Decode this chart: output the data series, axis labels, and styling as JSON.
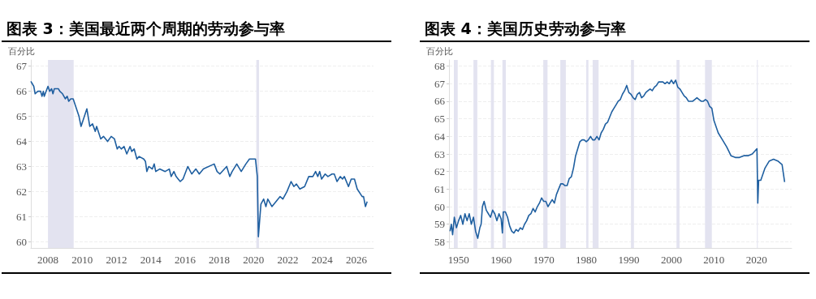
{
  "chart_data": [
    {
      "type": "line",
      "title": "图表 3：美国最近两个周期的劳动参与率",
      "ylabel": "百分比",
      "xlim": [
        2007,
        2027
      ],
      "xticks": [
        2008,
        2010,
        2012,
        2014,
        2016,
        2018,
        2020,
        2022,
        2024,
        2026
      ],
      "ylim": [
        59.75,
        67.25
      ],
      "yticks": [
        60,
        61,
        62,
        63,
        64,
        65,
        66,
        67
      ],
      "grid": "y",
      "marker": "none",
      "line_style": "solid",
      "bands": [
        {
          "axis": "x",
          "from": 2008,
          "to": 2009.5,
          "color": "#e3e3f0"
        },
        {
          "axis": "x",
          "from": 2020.16,
          "to": 2020.32,
          "color": "#e3e3f0"
        }
      ],
      "series": [
        {
          "color": "#1f5fa0",
          "x": [
            2007.0,
            2007.17,
            2007.25,
            2007.41,
            2007.57,
            2007.65,
            2007.73,
            2007.78,
            2007.89,
            2008.0,
            2008.1,
            2008.21,
            2008.29,
            2008.37,
            2008.61,
            2008.69,
            2008.85,
            2009.01,
            2009.12,
            2009.21,
            2009.33,
            2009.47,
            2009.81,
            2009.93,
            2010.27,
            2010.44,
            2010.6,
            2010.76,
            2010.84,
            2011.08,
            2011.24,
            2011.48,
            2011.69,
            2011.88,
            2012.04,
            2012.15,
            2012.28,
            2012.44,
            2012.6,
            2012.79,
            2012.89,
            2013.03,
            2013.19,
            2013.32,
            2013.59,
            2013.69,
            2013.77,
            2013.88,
            2014.09,
            2014.2,
            2014.29,
            2014.52,
            2014.84,
            2015.08,
            2015.19,
            2015.35,
            2015.48,
            2015.6,
            2015.72,
            2015.88,
            2016.16,
            2016.39,
            2016.63,
            2016.83,
            2017.07,
            2017.7,
            2017.87,
            2018.03,
            2018.43,
            2018.61,
            2018.75,
            2019.02,
            2019.28,
            2019.55,
            2019.76,
            2020.11,
            2020.22,
            2020.28,
            2020.43,
            2020.59,
            2020.72,
            2020.83,
            2021.07,
            2021.31,
            2021.55,
            2021.71,
            2021.95,
            2022.19,
            2022.35,
            2022.5,
            2022.7,
            2022.98,
            2023.22,
            2023.46,
            2023.62,
            2023.75,
            2023.86,
            2023.97,
            2024.18,
            2024.34,
            2024.58,
            2024.71,
            2024.87,
            2025.06,
            2025.19,
            2025.3,
            2025.54,
            2025.7,
            2025.89,
            2026.05,
            2026.34,
            2026.42,
            2026.53,
            2026.63
          ],
          "values": [
            66.4,
            66.2,
            65.9,
            66.0,
            66.0,
            65.8,
            66.0,
            65.8,
            66.0,
            66.2,
            66.0,
            66.1,
            65.9,
            66.1,
            66.1,
            66.0,
            65.9,
            65.7,
            65.8,
            65.6,
            65.7,
            65.7,
            65.0,
            64.6,
            65.3,
            64.6,
            64.7,
            64.4,
            64.6,
            64.1,
            64.2,
            64.0,
            64.2,
            64.1,
            63.7,
            63.8,
            63.7,
            63.8,
            63.5,
            63.8,
            63.6,
            63.7,
            63.3,
            63.4,
            63.3,
            63.2,
            62.8,
            63.0,
            62.9,
            63.1,
            62.8,
            62.9,
            62.8,
            62.9,
            62.6,
            62.8,
            62.6,
            62.5,
            62.4,
            62.5,
            63.0,
            62.7,
            62.9,
            62.7,
            62.9,
            63.1,
            62.8,
            62.7,
            63.0,
            62.6,
            62.8,
            63.1,
            62.8,
            63.1,
            63.3,
            63.3,
            62.6,
            60.2,
            61.5,
            61.7,
            61.4,
            61.7,
            61.4,
            61.6,
            61.8,
            61.7,
            62.0,
            62.4,
            62.2,
            62.3,
            62.1,
            62.2,
            62.6,
            62.6,
            62.8,
            62.6,
            62.8,
            62.5,
            62.7,
            62.6,
            62.7,
            62.7,
            62.4,
            62.6,
            62.5,
            62.6,
            62.2,
            62.5,
            62.5,
            62.1,
            61.8,
            61.8,
            61.4,
            61.6
          ]
        }
      ]
    },
    {
      "type": "line",
      "title": "图表 4：美国历史劳动参与率",
      "ylabel": "百分比",
      "xlim": [
        1947.75,
        2028.25
      ],
      "xticks": [
        1950,
        1960,
        1970,
        1980,
        1990,
        2000,
        2010,
        2020
      ],
      "ylim": [
        57.65,
        68.35
      ],
      "yticks": [
        58,
        59,
        60,
        61,
        62,
        63,
        64,
        65,
        66,
        67,
        68
      ],
      "grid": "y",
      "marker": "none",
      "line_style": "solid",
      "bands": [
        {
          "axis": "x",
          "from": 1948.9,
          "to": 1949.8,
          "color": "#e3e3f0"
        },
        {
          "axis": "x",
          "from": 1953.5,
          "to": 1954.4,
          "color": "#e3e3f0"
        },
        {
          "axis": "x",
          "from": 1957.6,
          "to": 1958.3,
          "color": "#e3e3f0"
        },
        {
          "axis": "x",
          "from": 1960.3,
          "to": 1961.1,
          "color": "#e3e3f0"
        },
        {
          "axis": "x",
          "from": 1969.9,
          "to": 1970.9,
          "color": "#e3e3f0"
        },
        {
          "axis": "x",
          "from": 1973.9,
          "to": 1975.2,
          "color": "#e3e3f0"
        },
        {
          "axis": "x",
          "from": 1980.0,
          "to": 1980.5,
          "color": "#e3e3f0"
        },
        {
          "axis": "x",
          "from": 1981.5,
          "to": 1982.9,
          "color": "#e3e3f0"
        },
        {
          "axis": "x",
          "from": 1990.5,
          "to": 1991.2,
          "color": "#e3e3f0"
        },
        {
          "axis": "x",
          "from": 2001.2,
          "to": 2001.9,
          "color": "#e3e3f0"
        },
        {
          "axis": "x",
          "from": 2007.9,
          "to": 2009.5,
          "color": "#e3e3f0"
        },
        {
          "axis": "x",
          "from": 2020.1,
          "to": 2020.3,
          "color": "#e3e3f0"
        }
      ],
      "series": [
        {
          "color": "#1f5fa0",
          "x": [
            1948.0,
            1948.3,
            1948.6,
            1949,
            1949.5,
            1950,
            1950.5,
            1951,
            1951.5,
            1952,
            1952.5,
            1953,
            1953.5,
            1954,
            1954.5,
            1955,
            1955.3,
            1955.6,
            1956,
            1956.5,
            1957,
            1957.5,
            1958,
            1958.5,
            1959,
            1959.5,
            1960,
            1960.3,
            1960.5,
            1961,
            1961.5,
            1962,
            1962.5,
            1963,
            1963.5,
            1964,
            1964.5,
            1965,
            1965.5,
            1966,
            1966.5,
            1967,
            1967.5,
            1968,
            1968.5,
            1969,
            1969.5,
            1970,
            1970.5,
            1971,
            1971.5,
            1972,
            1972.5,
            1973,
            1973.5,
            1974,
            1974.5,
            1975,
            1975.5,
            1976,
            1976.5,
            1977,
            1977.5,
            1978,
            1978.5,
            1979,
            1979.5,
            1980,
            1980.5,
            1981,
            1981.5,
            1982,
            1982.5,
            1983,
            1983.5,
            1984,
            1984.5,
            1985,
            1985.5,
            1986,
            1986.5,
            1987,
            1987.5,
            1988,
            1988.5,
            1989,
            1989.5,
            1990,
            1990.5,
            1991,
            1991.5,
            1992,
            1992.5,
            1993,
            1993.5,
            1994,
            1994.5,
            1995,
            1995.5,
            1996,
            1996.5,
            1997,
            1997.5,
            1998,
            1998.5,
            1999,
            1999.5,
            2000,
            2000.5,
            2001,
            2001.5,
            2002,
            2002.5,
            2003,
            2003.5,
            2004,
            2004.5,
            2005,
            2005.5,
            2006,
            2006.5,
            2007,
            2007.5,
            2008,
            2008.5,
            2009,
            2009.5,
            2010,
            2011,
            2012,
            2013,
            2014,
            2015,
            2016,
            2017,
            2018,
            2019,
            2020.1,
            2020.3,
            2020.5,
            2021,
            2022,
            2023,
            2024,
            2025,
            2026,
            2026.6
          ],
          "values": [
            58.6,
            59.0,
            58.4,
            59.4,
            58.8,
            59.2,
            59.5,
            59.0,
            59.6,
            59.2,
            59.6,
            59.0,
            59.4,
            58.6,
            58.2,
            58.8,
            59.0,
            60.0,
            60.3,
            59.8,
            59.6,
            59.4,
            59.8,
            59.6,
            59.2,
            59.6,
            59.3,
            58.5,
            59.7,
            59.7,
            59.4,
            58.9,
            58.6,
            58.5,
            58.7,
            58.6,
            58.8,
            58.7,
            59.0,
            59.2,
            59.5,
            59.6,
            59.9,
            59.7,
            60.0,
            60.2,
            60.5,
            60.3,
            60.3,
            60.0,
            60.2,
            60.4,
            60.2,
            60.7,
            61.0,
            61.3,
            61.3,
            61.2,
            61.2,
            61.6,
            61.7,
            62.2,
            62.9,
            63.3,
            63.7,
            63.8,
            63.8,
            63.7,
            63.8,
            64.0,
            63.8,
            63.8,
            64.0,
            63.8,
            64.2,
            64.4,
            64.7,
            64.8,
            65.1,
            65.4,
            65.6,
            65.8,
            66.0,
            66.1,
            66.4,
            66.6,
            66.9,
            66.5,
            66.4,
            66.2,
            66.1,
            66.4,
            66.5,
            66.2,
            66.3,
            66.5,
            66.6,
            66.7,
            66.6,
            66.8,
            66.9,
            67.1,
            67.1,
            67.1,
            67.0,
            67.1,
            67.0,
            67.2,
            67.0,
            67.2,
            66.8,
            66.7,
            66.5,
            66.3,
            66.2,
            66.0,
            66.0,
            66.0,
            66.1,
            66.2,
            66.1,
            66.0,
            66.0,
            66.1,
            66.0,
            65.7,
            65.6,
            64.9,
            64.2,
            63.8,
            63.4,
            62.9,
            62.8,
            62.8,
            62.9,
            62.9,
            63.0,
            63.3,
            60.2,
            61.5,
            61.5,
            62.2,
            62.6,
            62.7,
            62.6,
            62.4,
            61.4
          ]
        }
      ]
    }
  ]
}
